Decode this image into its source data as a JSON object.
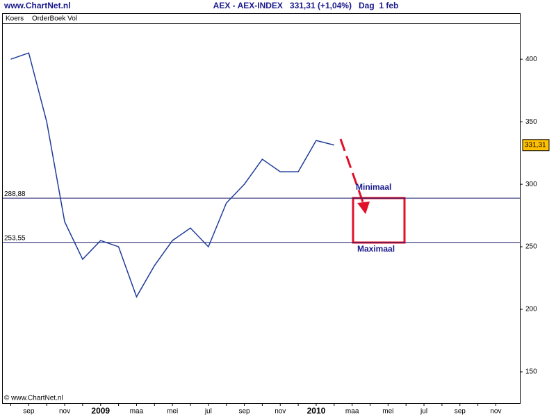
{
  "header": {
    "site": "www.ChartNet.nl",
    "title": "AEX - AEX-INDEX   331,31 (+1,04%)   Dag  1 feb"
  },
  "panel_labels": [
    "Koers",
    "OrderBoek Vol"
  ],
  "footer": "© www.ChartNet.nl",
  "chart_data": {
    "type": "line",
    "categories": [
      null,
      "sep",
      null,
      "nov",
      null,
      "2009",
      null,
      "maa",
      null,
      "mei",
      null,
      "jul",
      null,
      "sep",
      null,
      "nov",
      null,
      "2010",
      null,
      "maa",
      null,
      "mei",
      null,
      "jul",
      null,
      "sep",
      null,
      "nov"
    ],
    "series": [
      {
        "name": "AEX",
        "color": "#1f3c99",
        "values": [
          400,
          405,
          350,
          270,
          240,
          255,
          250,
          210,
          235,
          255,
          265,
          250,
          285,
          300,
          320,
          310,
          310,
          335,
          331.31,
          null,
          null,
          null,
          null,
          null,
          null,
          null,
          null,
          null
        ]
      }
    ],
    "ylim": [
      125,
      429
    ],
    "yticks": [
      150,
      200,
      250,
      300,
      350,
      400
    ],
    "levels": [
      {
        "value": 288.88,
        "label": "288,88"
      },
      {
        "value": 253.55,
        "label": "253,55"
      }
    ],
    "last_value": {
      "value": 331.31,
      "label": "331,31"
    },
    "annotations": [
      "Minimaal",
      "Maximaal"
    ]
  }
}
